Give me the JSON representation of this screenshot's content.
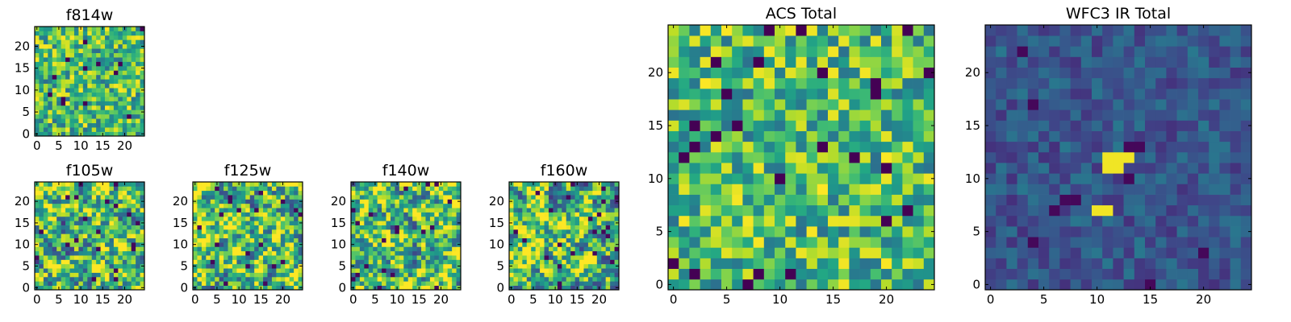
{
  "chart_data": [
    {
      "type": "heatmap",
      "title": "f814w",
      "grid_size": 25,
      "colormap": "viridis",
      "xlim": [
        0,
        24
      ],
      "ylim": [
        0,
        24
      ],
      "xticks": [
        0,
        5,
        10,
        15,
        20
      ],
      "yticks": [
        0,
        5,
        10,
        15,
        20
      ],
      "value_range": [
        0,
        1
      ],
      "seed": 11,
      "mode": "bright_noise"
    },
    {
      "type": "heatmap",
      "title": "f105w",
      "grid_size": 25,
      "colormap": "viridis",
      "xlim": [
        0,
        24
      ],
      "ylim": [
        0,
        24
      ],
      "xticks": [
        0,
        5,
        10,
        15,
        20
      ],
      "yticks": [
        0,
        5,
        10,
        15,
        20
      ],
      "value_range": [
        0,
        1
      ],
      "seed": 23,
      "mode": "bright_smooth"
    },
    {
      "type": "heatmap",
      "title": "f125w",
      "grid_size": 25,
      "colormap": "viridis",
      "xlim": [
        0,
        24
      ],
      "ylim": [
        0,
        24
      ],
      "xticks": [
        0,
        5,
        10,
        15,
        20
      ],
      "yticks": [
        0,
        5,
        10,
        15,
        20
      ],
      "value_range": [
        0,
        1
      ],
      "seed": 37,
      "mode": "bright_smooth"
    },
    {
      "type": "heatmap",
      "title": "f140w",
      "grid_size": 25,
      "colormap": "viridis",
      "xlim": [
        0,
        24
      ],
      "ylim": [
        0,
        24
      ],
      "xticks": [
        0,
        5,
        10,
        15,
        20
      ],
      "yticks": [
        0,
        5,
        10,
        15,
        20
      ],
      "value_range": [
        0,
        1
      ],
      "seed": 41,
      "mode": "bright_smooth"
    },
    {
      "type": "heatmap",
      "title": "f160w",
      "grid_size": 25,
      "colormap": "viridis",
      "xlim": [
        0,
        24
      ],
      "ylim": [
        0,
        24
      ],
      "xticks": [
        0,
        5,
        10,
        15,
        20
      ],
      "yticks": [
        0,
        5,
        10,
        15,
        20
      ],
      "value_range": [
        0,
        1
      ],
      "seed": 53,
      "mode": "bright_smooth"
    },
    {
      "type": "heatmap",
      "title": "ACS Total",
      "grid_size": 25,
      "colormap": "viridis",
      "xlim": [
        0,
        24
      ],
      "ylim": [
        0,
        24
      ],
      "xticks": [
        0,
        5,
        10,
        15,
        20
      ],
      "yticks": [
        0,
        5,
        10,
        15,
        20
      ],
      "value_range": [
        0,
        1
      ],
      "seed": 67,
      "mode": "bright_noise"
    },
    {
      "type": "heatmap",
      "title": "WFC3 IR Total",
      "grid_size": 25,
      "colormap": "viridis",
      "xlim": [
        0,
        24
      ],
      "ylim": [
        0,
        24
      ],
      "xticks": [
        0,
        5,
        10,
        15,
        20
      ],
      "yticks": [
        0,
        5,
        10,
        15,
        20
      ],
      "value_range": [
        0,
        1
      ],
      "seed": 79,
      "mode": "dark_with_source",
      "bright_cells": [
        [
          11,
          12
        ],
        [
          12,
          12
        ],
        [
          13,
          12
        ],
        [
          11,
          11
        ],
        [
          12,
          11
        ],
        [
          10,
          7
        ],
        [
          11,
          7
        ]
      ],
      "dark_cells": [
        [
          3,
          22
        ],
        [
          6,
          7
        ],
        [
          7,
          8
        ],
        [
          8,
          8
        ],
        [
          4,
          17
        ],
        [
          13,
          13
        ],
        [
          14,
          13
        ],
        [
          4,
          4
        ],
        [
          15,
          0
        ],
        [
          20,
          3
        ],
        [
          13,
          10
        ]
      ]
    }
  ]
}
